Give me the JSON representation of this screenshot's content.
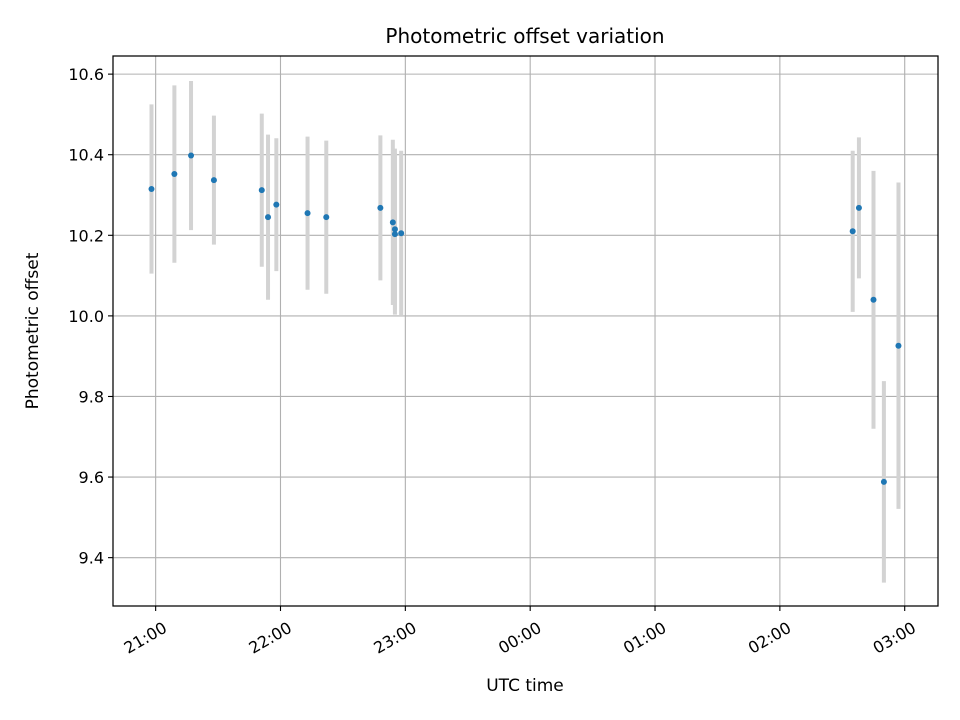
{
  "chart_data": {
    "type": "scatter",
    "title": "Photometric offset variation",
    "xlabel": "UTC time",
    "ylabel": "Photometric offset",
    "grid": true,
    "legend": "none",
    "x_tick_labels": [
      "21:00",
      "22:00",
      "23:00",
      "00:00",
      "01:00",
      "02:00",
      "03:00"
    ],
    "x_ticks_minutes_after_2100": [
      0,
      60,
      120,
      180,
      240,
      300,
      360
    ],
    "x_range_minutes_after_2100": [
      -20.5,
      376
    ],
    "y_ticks": [
      9.4,
      9.6,
      9.8,
      10.0,
      10.2,
      10.4,
      10.6
    ],
    "ylim": [
      9.28,
      10.645
    ],
    "marker_color": "#1f77b4",
    "errorbar_color": "#d3d3d3",
    "series": [
      {
        "points": [
          {
            "time": "20:58",
            "y": 10.315,
            "err": 0.21
          },
          {
            "time": "21:09",
            "y": 10.352,
            "err": 0.22
          },
          {
            "time": "21:17",
            "y": 10.398,
            "err": 0.185
          },
          {
            "time": "21:28",
            "y": 10.337,
            "err": 0.16
          },
          {
            "time": "21:51",
            "y": 10.312,
            "err": 0.19
          },
          {
            "time": "21:54",
            "y": 10.245,
            "err": 0.205
          },
          {
            "time": "21:58",
            "y": 10.276,
            "err": 0.165
          },
          {
            "time": "22:13",
            "y": 10.255,
            "err": 0.19
          },
          {
            "time": "22:22",
            "y": 10.245,
            "err": 0.19
          },
          {
            "time": "22:48",
            "y": 10.268,
            "err": 0.18
          },
          {
            "time": "22:54",
            "y": 10.232,
            "err": 0.205
          },
          {
            "time": "22:55",
            "y": 10.215,
            "err": 0.2
          },
          {
            "time": "22:55",
            "y": 10.203,
            "err": 0.2
          },
          {
            "time": "22:58",
            "y": 10.205,
            "err": 0.205
          },
          {
            "time": "02:35",
            "y": 10.21,
            "err": 0.2
          },
          {
            "time": "02:38",
            "y": 10.268,
            "err": 0.175
          },
          {
            "time": "02:45",
            "y": 10.04,
            "err": 0.32
          },
          {
            "time": "02:50",
            "y": 9.588,
            "err": 0.25
          },
          {
            "time": "02:57",
            "y": 9.926,
            "err": 0.405
          }
        ]
      }
    ]
  }
}
